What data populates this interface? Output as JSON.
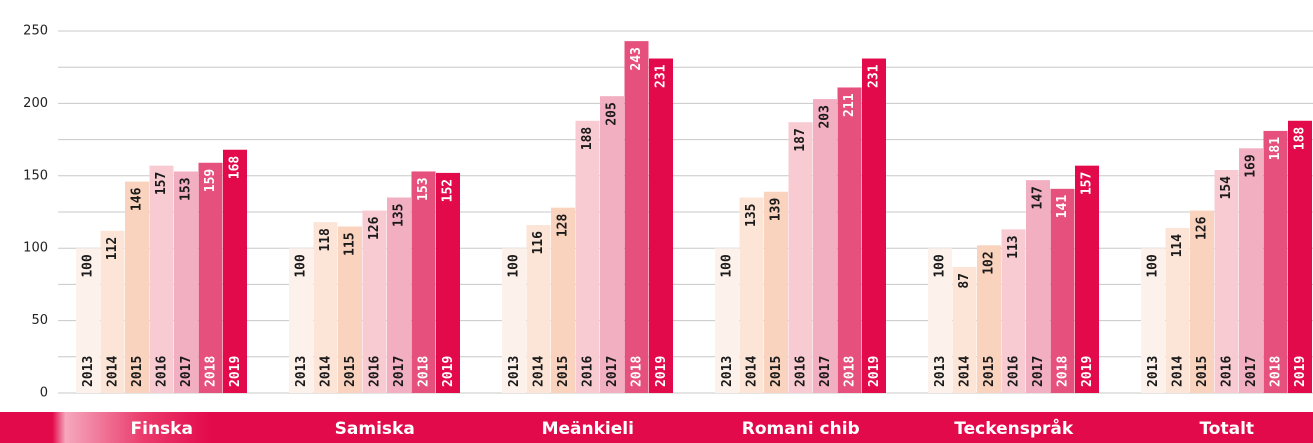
{
  "chart_data": {
    "type": "bar",
    "categories": [
      "Finska",
      "Samiska",
      "Meänkieli",
      "Romani chib",
      "Teckenspråk",
      "Totalt"
    ],
    "series": [
      {
        "name": "2013",
        "color": "#fdf1ec",
        "values": [
          100,
          100,
          100,
          100,
          100,
          100
        ]
      },
      {
        "name": "2014",
        "color": "#fce4d6",
        "values": [
          112,
          118,
          116,
          135,
          87,
          114
        ]
      },
      {
        "name": "2015",
        "color": "#f9d3bd",
        "values": [
          146,
          115,
          128,
          139,
          102,
          126
        ]
      },
      {
        "name": "2016",
        "color": "#f8cbd2",
        "values": [
          157,
          126,
          188,
          187,
          113,
          154
        ]
      },
      {
        "name": "2017",
        "color": "#f3afc2",
        "values": [
          153,
          135,
          205,
          203,
          147,
          169
        ]
      },
      {
        "name": "2018",
        "color": "#e5507d",
        "values": [
          159,
          153,
          243,
          211,
          141,
          181
        ]
      },
      {
        "name": "2019",
        "color": "#e30a4c",
        "values": [
          168,
          152,
          231,
          231,
          157,
          188
        ]
      }
    ],
    "ylim": [
      0,
      250
    ],
    "yticks": [
      0,
      50,
      100,
      150,
      200,
      250
    ],
    "minor_yticks": [
      25,
      75,
      125,
      175,
      225
    ],
    "grid": true
  }
}
